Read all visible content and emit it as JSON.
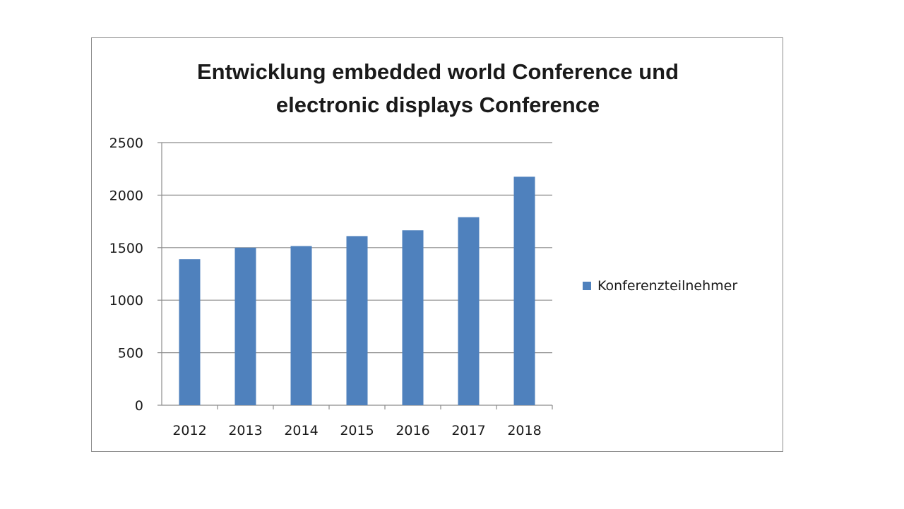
{
  "chart_data": {
    "type": "bar",
    "title_lines": [
      "Entwicklung embedded world Conference und",
      "electronic displays Conference"
    ],
    "categories": [
      "2012",
      "2013",
      "2014",
      "2015",
      "2016",
      "2017",
      "2018"
    ],
    "series": [
      {
        "name": "Konferenzteilnehmer",
        "color": "#4f81bd",
        "values": [
          1390,
          1500,
          1515,
          1610,
          1665,
          1790,
          2175
        ]
      }
    ],
    "yticks": [
      "0",
      "500",
      "1000",
      "1500",
      "2000",
      "2500"
    ],
    "ylim": [
      0,
      2500
    ],
    "grid": true,
    "legend_position": "right"
  }
}
